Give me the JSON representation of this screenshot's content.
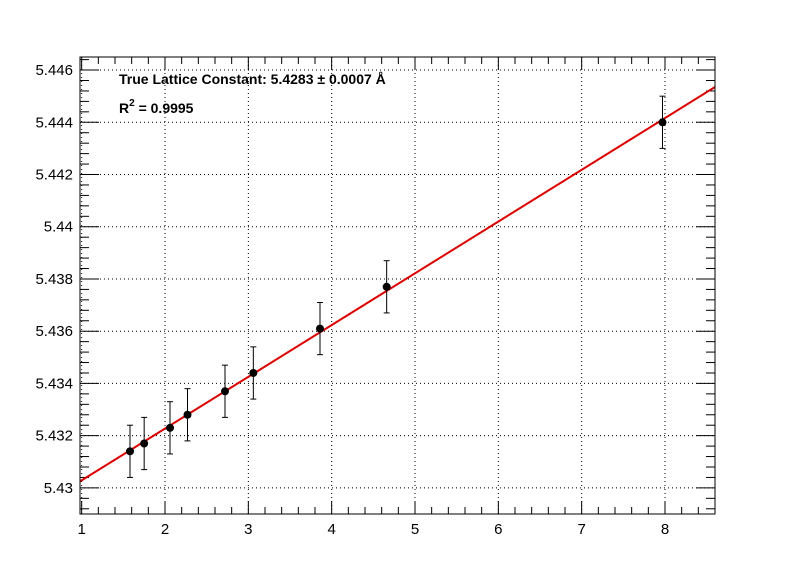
{
  "chart_data": {
    "type": "scatter",
    "title": "",
    "xlabel": "",
    "ylabel": "",
    "xlim": [
      0.98,
      8.6
    ],
    "ylim": [
      5.429,
      5.4465
    ],
    "xticks": [
      1,
      2,
      3,
      4,
      5,
      6,
      7,
      8
    ],
    "xtick_labels": [
      "1",
      "2",
      "3",
      "4",
      "5",
      "6",
      "7",
      "8"
    ],
    "yticks": [
      5.43,
      5.432,
      5.434,
      5.436,
      5.438,
      5.44,
      5.442,
      5.444,
      5.446
    ],
    "ytick_labels": [
      "5.43",
      "5.432",
      "5.434",
      "5.436",
      "5.438",
      "5.44",
      "5.442",
      "5.444",
      "5.446"
    ],
    "grid": true,
    "points": [
      {
        "x": 1.58,
        "y": 5.4314,
        "err": 0.001
      },
      {
        "x": 1.75,
        "y": 5.4317,
        "err": 0.001
      },
      {
        "x": 2.06,
        "y": 5.4323,
        "err": 0.001
      },
      {
        "x": 2.27,
        "y": 5.4328,
        "err": 0.001
      },
      {
        "x": 2.72,
        "y": 5.4337,
        "err": 0.001
      },
      {
        "x": 3.06,
        "y": 5.4344,
        "err": 0.001
      },
      {
        "x": 3.86,
        "y": 5.4361,
        "err": 0.001
      },
      {
        "x": 4.66,
        "y": 5.4377,
        "err": 0.001
      },
      {
        "x": 7.97,
        "y": 5.444,
        "err": 0.001
      }
    ],
    "fit_line": {
      "x_start": 0.98,
      "y_start": 5.43025,
      "x_end": 8.6,
      "y_end": 5.44535,
      "color": "#dd0000"
    },
    "point_color": "#000000",
    "annotations": {
      "lattice": "True Lattice Constant: 5.4283 ± 0.0007 Å",
      "r2_prefix": "R",
      "r2_sup": "2",
      "r2_value": " = 0.9995"
    }
  }
}
